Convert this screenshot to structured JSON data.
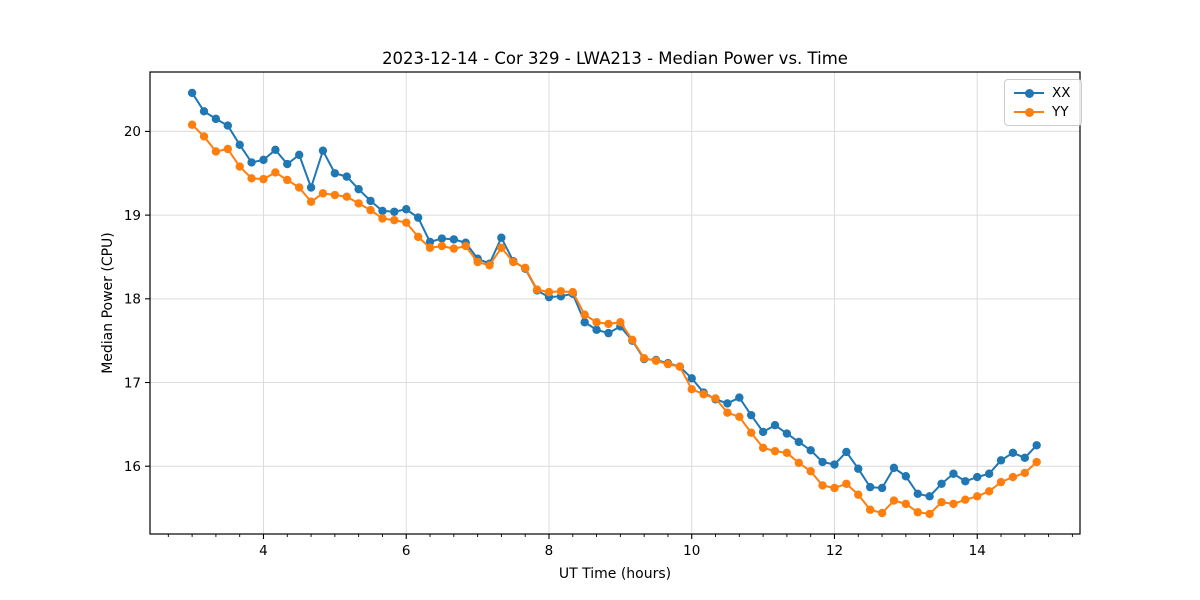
{
  "figure": {
    "background": "#ffffff"
  },
  "chart_data": {
    "type": "line",
    "title": "2023-12-14 - Cor 329 - LWA213 - Median Power vs. Time",
    "xlabel": "UT Time (hours)",
    "ylabel": "Median Power (CPU)",
    "xlim": [
      2.41,
      15.44
    ],
    "ylim": [
      15.19,
      20.71
    ],
    "x_ticks": [
      4,
      6,
      8,
      10,
      12,
      14
    ],
    "y_ticks": [
      16,
      17,
      18,
      19,
      20
    ],
    "x_minor_tick_step": 0.3333,
    "grid": "major-both-light",
    "grid_color": "#dcdcdc",
    "legend": {
      "position": "upper-right"
    },
    "x": [
      3.0,
      3.167,
      3.333,
      3.5,
      3.667,
      3.833,
      4.0,
      4.167,
      4.333,
      4.5,
      4.667,
      4.833,
      5.0,
      5.167,
      5.333,
      5.5,
      5.667,
      5.833,
      6.0,
      6.167,
      6.333,
      6.5,
      6.667,
      6.833,
      7.0,
      7.167,
      7.333,
      7.5,
      7.667,
      7.833,
      8.0,
      8.167,
      8.333,
      8.5,
      8.667,
      8.833,
      9.0,
      9.167,
      9.333,
      9.5,
      9.667,
      9.833,
      10.0,
      10.167,
      10.333,
      10.5,
      10.667,
      10.833,
      11.0,
      11.167,
      11.333,
      11.5,
      11.667,
      11.833,
      12.0,
      12.167,
      12.333,
      12.5,
      12.667,
      12.833,
      13.0,
      13.167,
      13.333,
      13.5,
      13.667,
      13.833,
      14.0,
      14.167,
      14.333,
      14.5,
      14.667,
      14.833
    ],
    "series": [
      {
        "name": "XX",
        "color": "#1f77b4",
        "marker": "circle",
        "values": [
          20.46,
          20.24,
          20.15,
          20.07,
          19.84,
          19.63,
          19.66,
          19.78,
          19.61,
          19.72,
          19.33,
          19.77,
          19.5,
          19.46,
          19.31,
          19.17,
          19.05,
          19.04,
          19.07,
          18.97,
          18.68,
          18.72,
          18.71,
          18.67,
          18.48,
          18.42,
          18.73,
          18.45,
          18.36,
          18.1,
          18.02,
          18.03,
          18.06,
          17.72,
          17.63,
          17.59,
          17.67,
          17.5,
          17.28,
          17.27,
          17.23,
          17.19,
          17.05,
          16.88,
          16.8,
          16.75,
          16.82,
          16.61,
          16.41,
          16.49,
          16.39,
          16.29,
          16.19,
          16.05,
          16.02,
          16.17,
          15.97,
          15.75,
          15.74,
          15.98,
          15.88,
          15.67,
          15.64,
          15.79,
          15.91,
          15.82,
          15.87,
          15.91,
          16.07,
          16.16,
          16.1,
          16.25
        ]
      },
      {
        "name": "YY",
        "color": "#ff7f0e",
        "marker": "circle",
        "values": [
          20.08,
          19.94,
          19.76,
          19.79,
          19.58,
          19.44,
          19.43,
          19.51,
          19.42,
          19.33,
          19.16,
          19.26,
          19.24,
          19.22,
          19.14,
          19.06,
          18.96,
          18.94,
          18.91,
          18.74,
          18.61,
          18.63,
          18.6,
          18.63,
          18.44,
          18.4,
          18.61,
          18.44,
          18.37,
          18.11,
          18.08,
          18.09,
          18.08,
          17.81,
          17.72,
          17.7,
          17.72,
          17.51,
          17.29,
          17.26,
          17.22,
          17.19,
          16.92,
          16.86,
          16.81,
          16.64,
          16.59,
          16.4,
          16.22,
          16.18,
          16.16,
          16.04,
          15.94,
          15.77,
          15.74,
          15.79,
          15.66,
          15.48,
          15.44,
          15.59,
          15.55,
          15.45,
          15.43,
          15.57,
          15.55,
          15.6,
          15.64,
          15.7,
          15.81,
          15.87,
          15.92,
          16.05
        ]
      }
    ]
  }
}
